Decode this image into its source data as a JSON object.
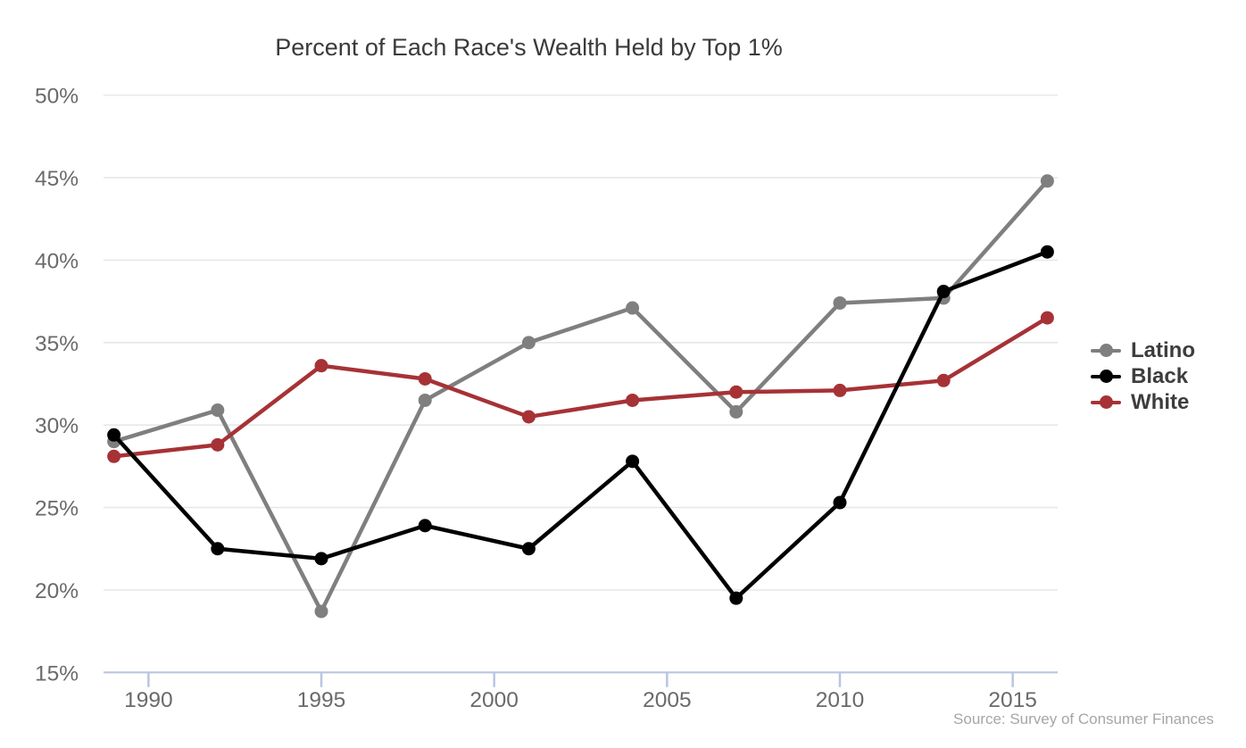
{
  "title": "Percent of Each Race's Wealth Held by Top 1%",
  "source": "Source: Survey of Consumer Finances",
  "legend": {
    "entries": [
      {
        "label": "Latino",
        "color": "#7f7f7f"
      },
      {
        "label": "Black",
        "color": "#000000"
      },
      {
        "label": "White",
        "color": "#a63236"
      }
    ]
  },
  "chart_data": {
    "type": "line",
    "title": "Percent of Each Race's Wealth Held by Top 1%",
    "xlabel": "",
    "ylabel": "",
    "x": [
      1989,
      1992,
      1995,
      1998,
      2001,
      2004,
      2007,
      2010,
      2013,
      2016
    ],
    "series": [
      {
        "name": "Latino",
        "color": "#7f7f7f",
        "values": [
          29.0,
          30.9,
          18.7,
          31.5,
          35.0,
          37.1,
          30.8,
          37.4,
          37.7,
          44.8
        ]
      },
      {
        "name": "Black",
        "color": "#000000",
        "values": [
          29.4,
          22.5,
          21.9,
          23.9,
          22.5,
          27.8,
          19.5,
          25.3,
          38.1,
          40.5
        ]
      },
      {
        "name": "White",
        "color": "#a63236",
        "values": [
          28.1,
          28.8,
          33.6,
          32.8,
          30.5,
          31.5,
          32.0,
          32.1,
          32.7,
          36.5
        ]
      }
    ],
    "draw_order": [
      "Latino",
      "White",
      "Black"
    ],
    "x_ticks": [
      1990,
      1995,
      2000,
      2005,
      2010,
      2015
    ],
    "y_ticks": [
      15,
      20,
      25,
      30,
      35,
      40,
      45,
      50
    ],
    "y_tick_suffix": "%",
    "xlim": [
      1988.7,
      2016.3
    ],
    "ylim": [
      15,
      50
    ],
    "grid": true,
    "legend_position": "right",
    "source_note": "Source: Survey of Consumer Finances"
  },
  "style": {
    "grid_color": "#e8e8e8",
    "axis_color": "#b9c6df",
    "tick_label_color": "#6a6a6a",
    "line_width": 4.5,
    "dot_radius": 7.5
  }
}
